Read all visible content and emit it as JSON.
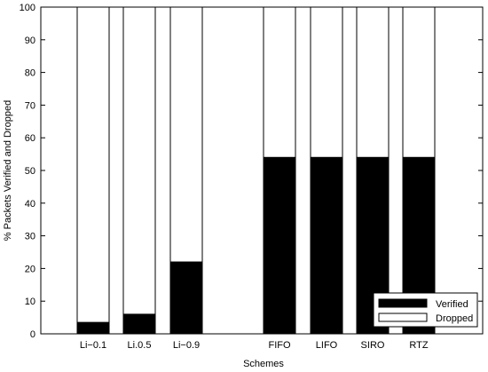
{
  "chart_data": {
    "type": "bar",
    "stacked": true,
    "title": "",
    "xlabel": "Schemes",
    "ylabel": "% Packets Verified and Dropped",
    "ylim": [
      0,
      100
    ],
    "yticks": [
      0,
      10,
      20,
      30,
      40,
      50,
      60,
      70,
      80,
      90,
      100
    ],
    "categories": [
      "Li-0.1",
      "Li.0.5",
      "Li-0.9",
      "FIFO",
      "LIFO",
      "SIRO",
      "RTZ"
    ],
    "category_labels": [
      "Li−0.1",
      "Li.0.5",
      "Li−0.9",
      "FIFO",
      "LIFO",
      "SIRO",
      "RTZ"
    ],
    "series": [
      {
        "name": "Verified",
        "color": "#000000",
        "values": [
          3.5,
          6,
          22,
          54,
          54,
          54,
          54
        ]
      },
      {
        "name": "Dropped",
        "color": "#ffffff",
        "values": [
          96.5,
          94,
          78,
          46,
          46,
          46,
          46
        ]
      }
    ],
    "legend_position": "bottom-right",
    "grid": false
  }
}
